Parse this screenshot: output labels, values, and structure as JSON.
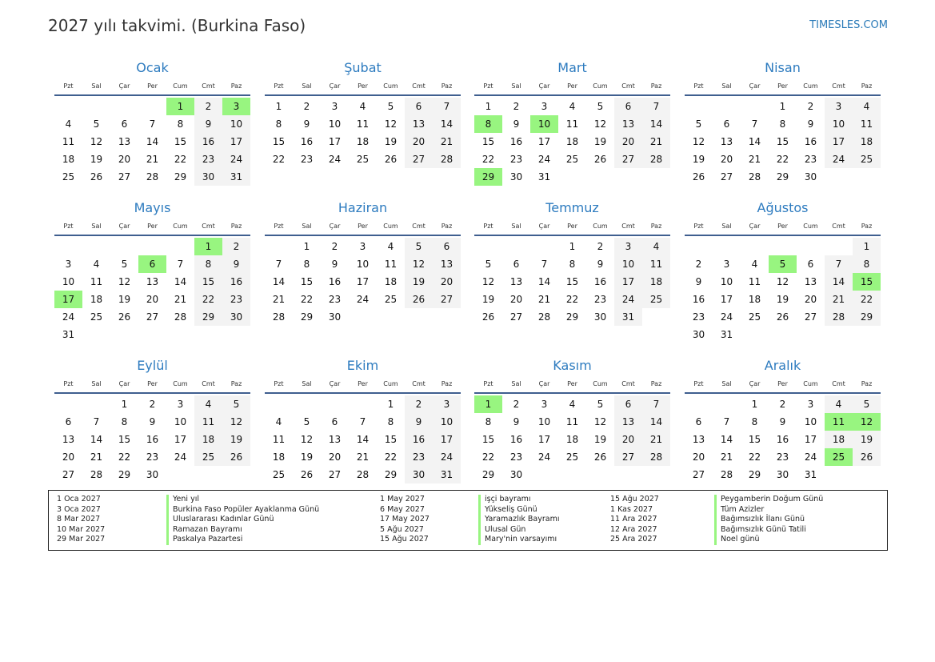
{
  "header": {
    "title": "2027 yılı takvimi. (Burkina Faso)",
    "brand": "TIMESLES.COM"
  },
  "year": 2027,
  "weekdays": [
    "Pzt",
    "Sal",
    "Çar",
    "Per",
    "Cum",
    "Cmt",
    "Paz"
  ],
  "colors": {
    "holiday": "#98f580",
    "weekend": "#f3f3f3",
    "month_title": "#2d7bbf"
  },
  "months": [
    {
      "name": "Ocak",
      "holidays": [
        1,
        3
      ]
    },
    {
      "name": "Şubat",
      "holidays": []
    },
    {
      "name": "Mart",
      "holidays": [
        8,
        10,
        29
      ]
    },
    {
      "name": "Nisan",
      "holidays": []
    },
    {
      "name": "Mayıs",
      "holidays": [
        1,
        6,
        17
      ]
    },
    {
      "name": "Haziran",
      "holidays": []
    },
    {
      "name": "Temmuz",
      "holidays": []
    },
    {
      "name": "Ağustos",
      "holidays": [
        5,
        15
      ]
    },
    {
      "name": "Eylül",
      "holidays": []
    },
    {
      "name": "Ekim",
      "holidays": []
    },
    {
      "name": "Kasım",
      "holidays": [
        1
      ]
    },
    {
      "name": "Aralık",
      "holidays": [
        11,
        12,
        25
      ]
    }
  ],
  "legend": [
    [
      {
        "date": "1 Oca 2027",
        "name": "Yeni yıl"
      },
      {
        "date": "3 Oca 2027",
        "name": "Burkina Faso Popüler Ayaklanma Günü"
      },
      {
        "date": "8 Mar 2027",
        "name": "Uluslararası Kadınlar Günü"
      },
      {
        "date": "10 Mar 2027",
        "name": "Ramazan Bayramı"
      },
      {
        "date": "29 Mar 2027",
        "name": "Paskalya Pazartesi"
      }
    ],
    [
      {
        "date": "1 May 2027",
        "name": "işçi bayramı"
      },
      {
        "date": "6 May 2027",
        "name": "Yükseliş Günü"
      },
      {
        "date": "17 May 2027",
        "name": "Yaramazlık Bayramı"
      },
      {
        "date": "5 Ağu 2027",
        "name": "Ulusal Gün"
      },
      {
        "date": "15 Ağu 2027",
        "name": "Mary'nin varsayımı"
      }
    ],
    [
      {
        "date": "15 Ağu 2027",
        "name": "Peygamberin Doğum Günü"
      },
      {
        "date": "1 Kas 2027",
        "name": "Tüm Azizler"
      },
      {
        "date": "11 Ara 2027",
        "name": "Bağımsızlık İlanı Günü"
      },
      {
        "date": "12 Ara 2027",
        "name": "Bağımsızlık Günü Tatili"
      },
      {
        "date": "25 Ara 2027",
        "name": "Noel günü"
      }
    ]
  ]
}
